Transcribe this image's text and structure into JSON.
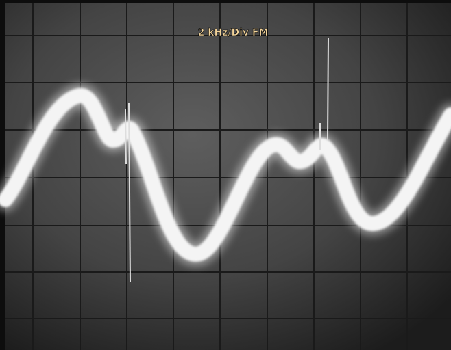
{
  "screen": {
    "label": "2 kHz/Div FM"
  }
}
